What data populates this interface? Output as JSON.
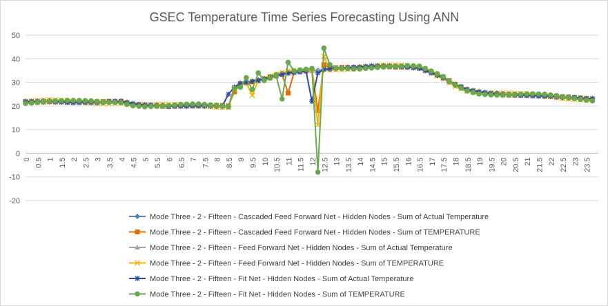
{
  "chart_data": {
    "type": "line",
    "title": "GSEC Temperature Time Series Forecasting Using ANN",
    "xlabel": "",
    "ylabel": "",
    "ylim": [
      -20,
      50
    ],
    "yticks": [
      -20,
      -10,
      0,
      10,
      20,
      30,
      40,
      50
    ],
    "grid": "horizontal",
    "legend_position": "bottom",
    "x_tick_labels": [
      "0",
      "0.5",
      "1",
      "1.5",
      "2",
      "2.5",
      "3",
      "3.5",
      "4",
      "4.5",
      "5",
      "5.5",
      "6",
      "6.5",
      "7",
      "7.5",
      "8",
      "8.5",
      "9",
      "9.5",
      "10",
      "10.5",
      "11",
      "11.5",
      "12",
      "12.5",
      "13",
      "13.5",
      "14",
      "14.5",
      "15",
      "15.5",
      "16",
      "16.5",
      "17",
      "17.5",
      "18",
      "18.5",
      "19",
      "19.5",
      "20",
      "20.5",
      "21",
      "21.5",
      "22",
      "22.5",
      "23",
      "23.5"
    ],
    "series": [
      {
        "name": "Mode Three - 2 - Fifteen - Cascaded Feed Forward Net - Hidden Nodes - Sum of Actual Temperature",
        "color": "#4f81bd",
        "marker": "diamond",
        "values": []
      },
      {
        "name": "Mode Three - 2 - Fifteen - Cascaded Feed Forward Net - Hidden Nodes - Sum of TEMPERATURE",
        "color": "#e36c0a",
        "marker": "square",
        "values": []
      },
      {
        "name": "Mode Three - 2 - Fifteen - Feed Forward Net - Hidden Nodes - Sum of Actual Temperature",
        "color": "#a5a5a5",
        "marker": "triangle",
        "values": []
      },
      {
        "name": "Mode Three - 2 - Fifteen - Feed Forward Net - Hidden Nodes - Sum of TEMPERATURE",
        "color": "#f4b400",
        "marker": "x",
        "values": []
      },
      {
        "name": "Mode Three - 2 - Fifteen - Fit Net - Hidden Nodes - Sum of Actual Temperature",
        "color": "#2e4a9e",
        "marker": "star",
        "values": []
      },
      {
        "name": "Mode Three - 2 - Fifteen - Fit Net - Hidden Nodes - Sum of TEMPERATURE",
        "color": "#6aa84f",
        "marker": "circle",
        "values": []
      }
    ],
    "base_profile": [
      [
        0,
        22
      ],
      [
        1,
        22
      ],
      [
        2,
        21.5
      ],
      [
        3,
        21.5
      ],
      [
        4,
        22
      ],
      [
        4.5,
        21
      ],
      [
        5,
        20.5
      ],
      [
        6,
        20
      ],
      [
        7,
        20
      ],
      [
        8,
        20
      ],
      [
        8.5,
        20
      ],
      [
        8.75,
        28
      ],
      [
        9,
        29.5
      ],
      [
        9.5,
        30.5
      ],
      [
        10,
        31.5
      ],
      [
        10.5,
        33
      ],
      [
        11,
        34
      ],
      [
        11.5,
        34.5
      ],
      [
        12,
        35
      ],
      [
        12.5,
        35.5
      ],
      [
        13,
        36
      ],
      [
        14,
        36.5
      ],
      [
        14.5,
        37
      ],
      [
        15,
        37
      ],
      [
        16,
        36.5
      ],
      [
        16.5,
        36
      ],
      [
        17,
        34
      ],
      [
        17.5,
        32
      ],
      [
        18,
        29
      ],
      [
        18.5,
        27
      ],
      [
        19,
        26
      ],
      [
        19.5,
        25.5
      ],
      [
        20,
        25
      ],
      [
        21,
        24.5
      ],
      [
        22,
        24
      ],
      [
        23,
        23.5
      ],
      [
        23.9,
        23
      ]
    ],
    "anomalies": {
      "Mode Three - 2 - Fifteen - Cascaded Feed Forward Net - Hidden Nodes - Sum of TEMPERATURE": [
        [
          8.75,
          26
        ],
        [
          11,
          25.5
        ],
        [
          12.25,
          18
        ],
        [
          12.5,
          37.5
        ]
      ],
      "Mode Three - 2 - Fifteen - Feed Forward Net - Hidden Nodes - Sum of TEMPERATURE": [
        [
          9.5,
          24.5
        ],
        [
          12.25,
          12
        ],
        [
          12.5,
          41
        ],
        [
          16.5,
          36.5
        ]
      ],
      "Mode Three - 2 - Fifteen - Fit Net - Hidden Nodes - Sum of Actual Temperature": [
        [
          8.5,
          25
        ],
        [
          12,
          22
        ],
        [
          12.25,
          34
        ]
      ],
      "Mode Three - 2 - Fifteen - Fit Net - Hidden Nodes - Sum of TEMPERATURE": [
        [
          9,
          28
        ],
        [
          9.25,
          32
        ],
        [
          9.5,
          27
        ],
        [
          9.75,
          34
        ],
        [
          10.75,
          23
        ],
        [
          11,
          38.5
        ],
        [
          12.25,
          -8
        ],
        [
          12.5,
          44.5
        ],
        [
          12.75,
          37.5
        ]
      ]
    }
  }
}
